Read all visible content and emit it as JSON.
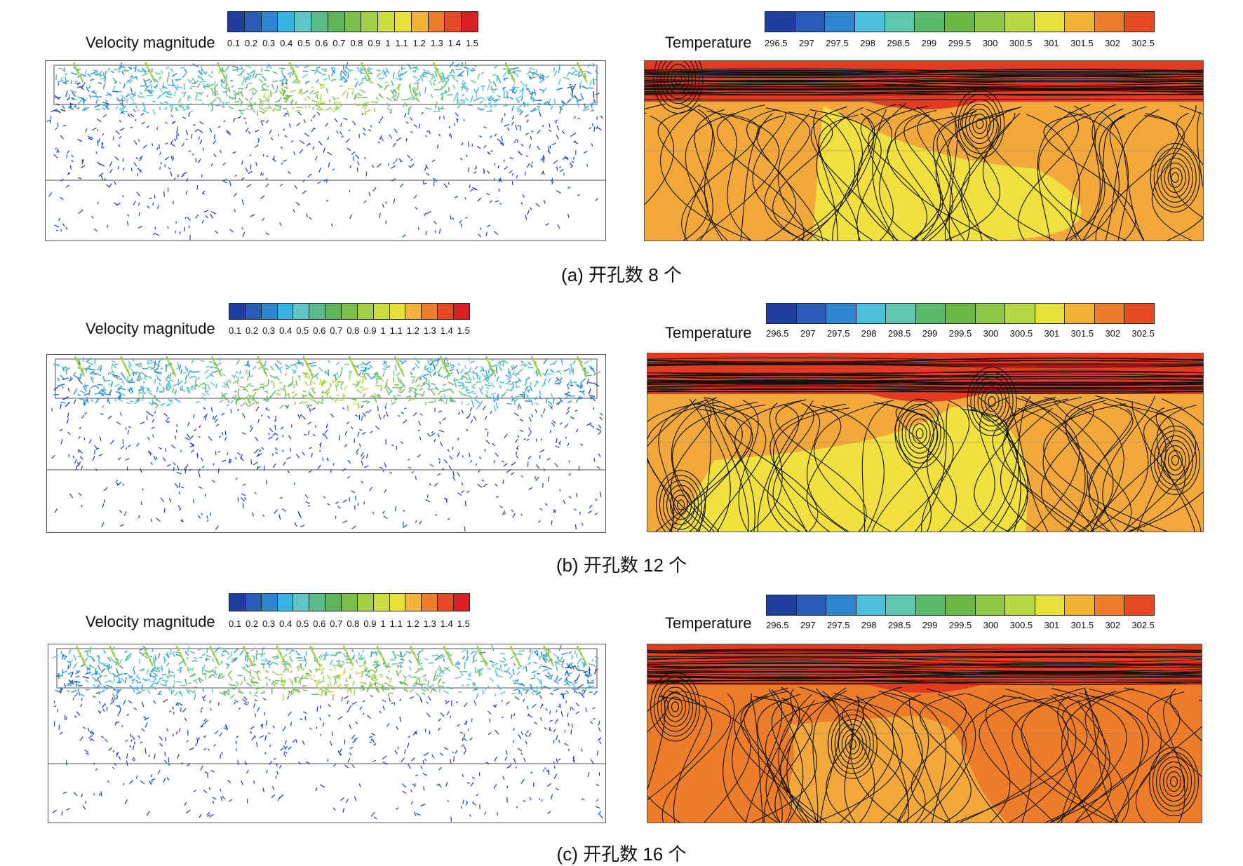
{
  "colors": {
    "velocity_scale": [
      "#1f3f9e",
      "#2a5cb8",
      "#2c86d0",
      "#36b3e0",
      "#5fc6c8",
      "#5cbb8a",
      "#5fb55a",
      "#7cc04a",
      "#a2cf45",
      "#cbdd3f",
      "#e9e03b",
      "#f2b236",
      "#ee7d2a",
      "#e64a25",
      "#d92022"
    ],
    "temperature_scale": [
      "#1f3f9e",
      "#2a5cb8",
      "#2c86d0",
      "#4cc0df",
      "#5fc6b0",
      "#5cbb6a",
      "#6ab846",
      "#8fc746",
      "#b7d743",
      "#e6e03c",
      "#f2b236",
      "#ee7d2a",
      "#e64a25"
    ],
    "warm_fill": "#f2a83a",
    "hot_fill": "#e53a22",
    "cool_fill": "#f0e040"
  },
  "figures": [
    {
      "caption": "(a) 开孔数 8 个",
      "holes": 8,
      "velocity": {
        "title": "Velocity magnitude",
        "ticks": [
          "0.1",
          "0.2",
          "0.3",
          "0.4",
          "0.5",
          "0.6",
          "0.7",
          "0.8",
          "0.9",
          "1",
          "1.1",
          "1.2",
          "1.3",
          "1.4",
          "1.5"
        ]
      },
      "temperature": {
        "title": "Temperature",
        "ticks": [
          "296.5",
          "297",
          "297.5",
          "298",
          "298.5",
          "299",
          "299.5",
          "300",
          "300.5",
          "301",
          "301.5",
          "302",
          "302.5"
        ]
      }
    },
    {
      "caption": "(b) 开孔数 12 个",
      "holes": 12,
      "velocity": {
        "title": "Velocity magnitude",
        "ticks": [
          "0.1",
          "0.2",
          "0.3",
          "0.4",
          "0.5",
          "0.6",
          "0.7",
          "0.8",
          "0.9",
          "1",
          "1.1",
          "1.2",
          "1.3",
          "1.4",
          "1.5"
        ]
      },
      "temperature": {
        "title": "Temperature",
        "ticks": [
          "296.5",
          "297",
          "297.5",
          "298",
          "298.5",
          "299",
          "299.5",
          "300",
          "300.5",
          "301",
          "301.5",
          "302",
          "302.5"
        ]
      }
    },
    {
      "caption": "(c) 开孔数 16 个",
      "holes": 16,
      "velocity": {
        "title": "Velocity magnitude",
        "ticks": [
          "0.1",
          "0.2",
          "0.3",
          "0.4",
          "0.5",
          "0.6",
          "0.7",
          "0.8",
          "0.9",
          "1",
          "1.1",
          "1.2",
          "1.3",
          "1.4",
          "1.5"
        ]
      },
      "temperature": {
        "title": "Temperature",
        "ticks": [
          "296.5",
          "297",
          "297.5",
          "298",
          "298.5",
          "299",
          "299.5",
          "300",
          "300.5",
          "301",
          "301.5",
          "302",
          "302.5"
        ]
      }
    }
  ]
}
